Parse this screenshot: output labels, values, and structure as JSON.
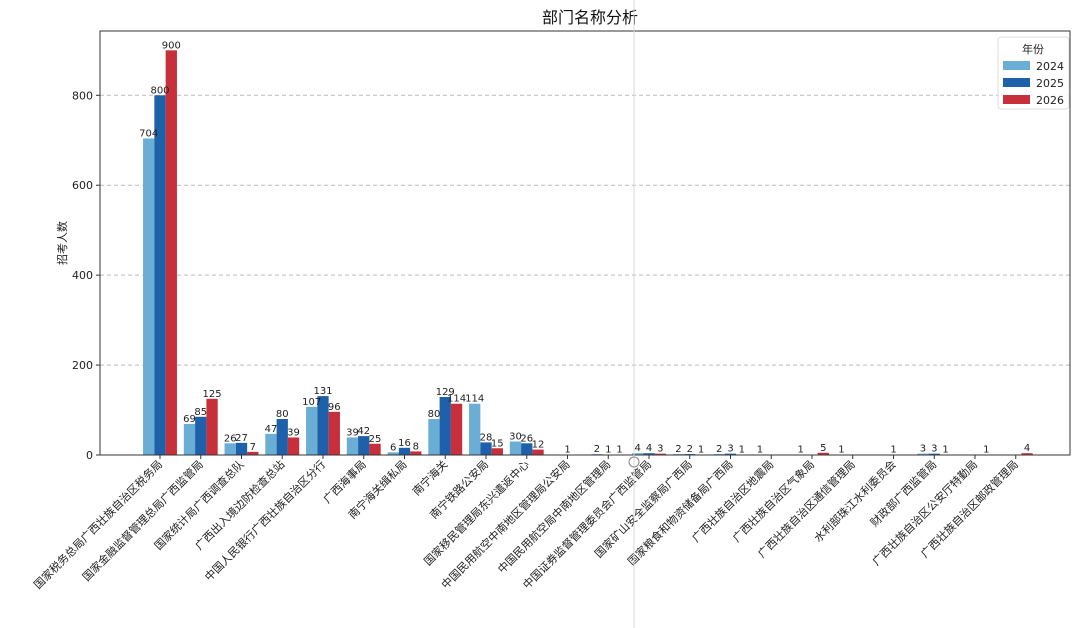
{
  "chart_data": {
    "type": "bar",
    "title": "部门名称分析",
    "xlabel": "",
    "ylabel": "招考人数",
    "ylim": [
      0,
      943
    ],
    "yticks": [
      0,
      200,
      400,
      600,
      800
    ],
    "grid": "y-dashed",
    "legend": {
      "title": "年份",
      "placement": "top-right"
    },
    "categories": [
      "国家税务总局广西壮族自治区税务局",
      "国家金融监督管理总局广西监管局",
      "国家统计局广西调查总队",
      "广西出入境边防检查总站",
      "中国人民银行广西壮族自治区分行",
      "广西海事局",
      "南宁海关缉私局",
      "南宁海关",
      "南宁铁路公安局",
      "国家移民管理局东兴遣返中心",
      "中国民用航空中南地区管理局公安局",
      "中国民用航空局中南地区管理局",
      "中国证券监督管理委员会广西监管局",
      "国家矿山安全监察局广西局",
      "国家粮食和物资储备局广西局",
      "广西壮族自治区地震局",
      "广西壮族自治区气象局",
      "广西壮族自治区通信管理局",
      "水利部珠江水利委员会",
      "财政部广西监管局",
      "广西壮族自治区公安厅特勤局",
      "广西壮族自治区邮政管理局"
    ],
    "series": [
      {
        "name": "2024",
        "color": "#6aaed6",
        "values": [
          704,
          69,
          26,
          47,
          107,
          39,
          6,
          80,
          114,
          30,
          0,
          2,
          4,
          2,
          2,
          1,
          1,
          1,
          0,
          3,
          0,
          0
        ]
      },
      {
        "name": "2025",
        "color": "#1f60aa",
        "values": [
          800,
          85,
          27,
          80,
          131,
          42,
          16,
          129,
          28,
          26,
          1,
          1,
          4,
          2,
          3,
          0,
          0,
          0,
          1,
          3,
          0,
          0
        ]
      },
      {
        "name": "2026",
        "color": "#c7303a",
        "values": [
          900,
          125,
          7,
          39,
          96,
          25,
          8,
          114,
          15,
          12,
          0,
          1,
          3,
          1,
          1,
          0,
          5,
          0,
          0,
          1,
          1,
          4
        ]
      }
    ]
  }
}
